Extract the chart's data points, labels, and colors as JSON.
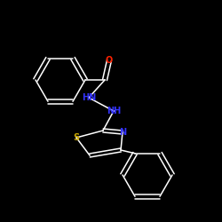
{
  "background_color": "#000000",
  "bond_color": "#ffffff",
  "atom_colors": {
    "O": "#ff2200",
    "N": "#3333ff",
    "S": "#ccaa00"
  },
  "figsize": [
    2.5,
    2.5
  ],
  "dpi": 100
}
